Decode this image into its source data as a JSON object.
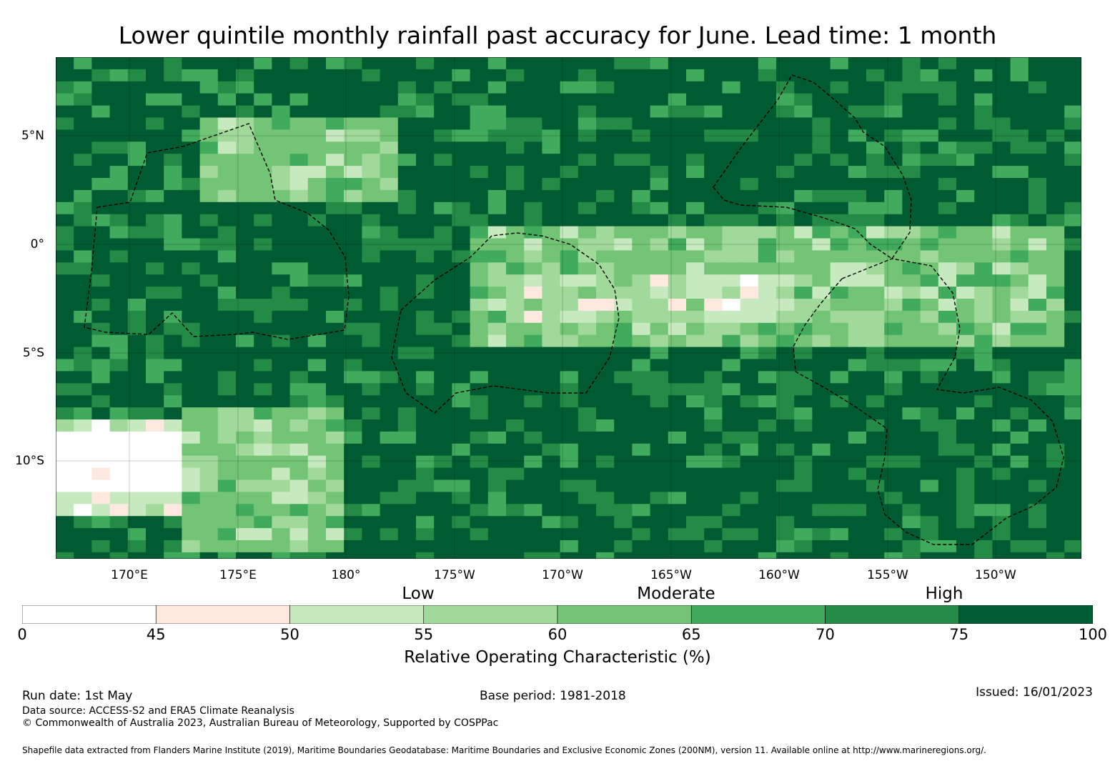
{
  "title": "Lower quintile monthly rainfall past accuracy for June. Lead time: 1 month",
  "map": {
    "lat_labels": [
      "5°N",
      "0°",
      "5°S",
      "10°S"
    ],
    "lon_labels": [
      "170°E",
      "175°E",
      "180°",
      "175°W",
      "170°W",
      "165°W",
      "160°W",
      "155°W",
      "150°W"
    ],
    "eez_outline_style": "dashed black",
    "grid": true
  },
  "categories": [
    "Low",
    "Moderate",
    "High"
  ],
  "colorbar": {
    "bounds": [
      "0",
      "45",
      "50",
      "55",
      "60",
      "65",
      "70",
      "75",
      "100"
    ],
    "colors": [
      "#ffffff",
      "#fee8e0",
      "#c7e9c0",
      "#a1d99b",
      "#74c476",
      "#41ab5d",
      "#238b45",
      "#005a32"
    ],
    "label": "Relative Operating Characteristic (%)"
  },
  "footer": {
    "run_date": "Run date: 1st May",
    "base_period": "Base period: 1981-2018",
    "issued": "Issued: 16/01/2023",
    "data_source": "Data source: ACCESS-S2 and ERA5 Climate Reanalysis",
    "copyright": "© Commonwealth of Australia 2023, Australian Bureau of Meteorology, Supported by COSPPac",
    "shapefile_note": "Shapefile data extracted from Flanders Marine Institute (2019), Maritime Boundaries Geodatabase: Maritime Boundaries and Exclusive Economic Zones (200NM), version 11. Available online at http://www.marineregions.org/."
  }
}
